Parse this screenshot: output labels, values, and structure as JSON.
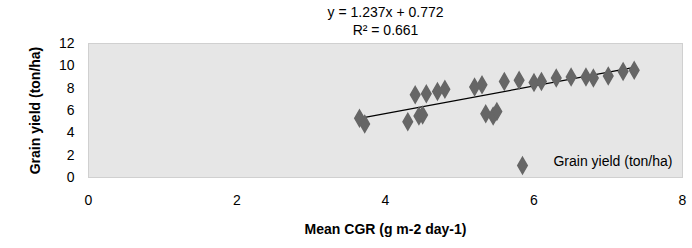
{
  "chart_data": {
    "type": "scatter",
    "annotations": [
      "y = 1.237x + 0.772",
      "R² = 0.661"
    ],
    "x_label": "Mean CGR (g m-2 day-1)",
    "y_label": "Grain yield (ton/ha)",
    "x": [
      3.65,
      3.72,
      4.3,
      4.4,
      4.45,
      4.5,
      4.55,
      4.7,
      4.8,
      5.2,
      5.3,
      5.35,
      5.45,
      5.5,
      5.6,
      5.8,
      6.0,
      6.1,
      6.3,
      6.5,
      6.7,
      6.8,
      7.0,
      7.2,
      7.35
    ],
    "series": [
      {
        "name": "Grain yield (ton/ha)",
        "color": "#666666",
        "marker": "diamond",
        "values": [
          5.3,
          4.8,
          5.0,
          7.4,
          5.5,
          5.6,
          7.5,
          7.7,
          7.9,
          8.1,
          8.3,
          5.7,
          5.5,
          5.9,
          8.6,
          8.7,
          8.5,
          8.6,
          8.9,
          9.0,
          9.0,
          8.9,
          9.1,
          9.5,
          9.6
        ]
      }
    ],
    "trendline": {
      "slope": 1.237,
      "intercept": 0.772
    },
    "xlim": [
      0,
      8
    ],
    "xticks": [
      0,
      2,
      4,
      6,
      8
    ],
    "ylim": [
      0,
      12
    ],
    "yticks": [
      0,
      2,
      4,
      6,
      8,
      10,
      12
    ],
    "grid": false,
    "legend": "bottom-right"
  }
}
